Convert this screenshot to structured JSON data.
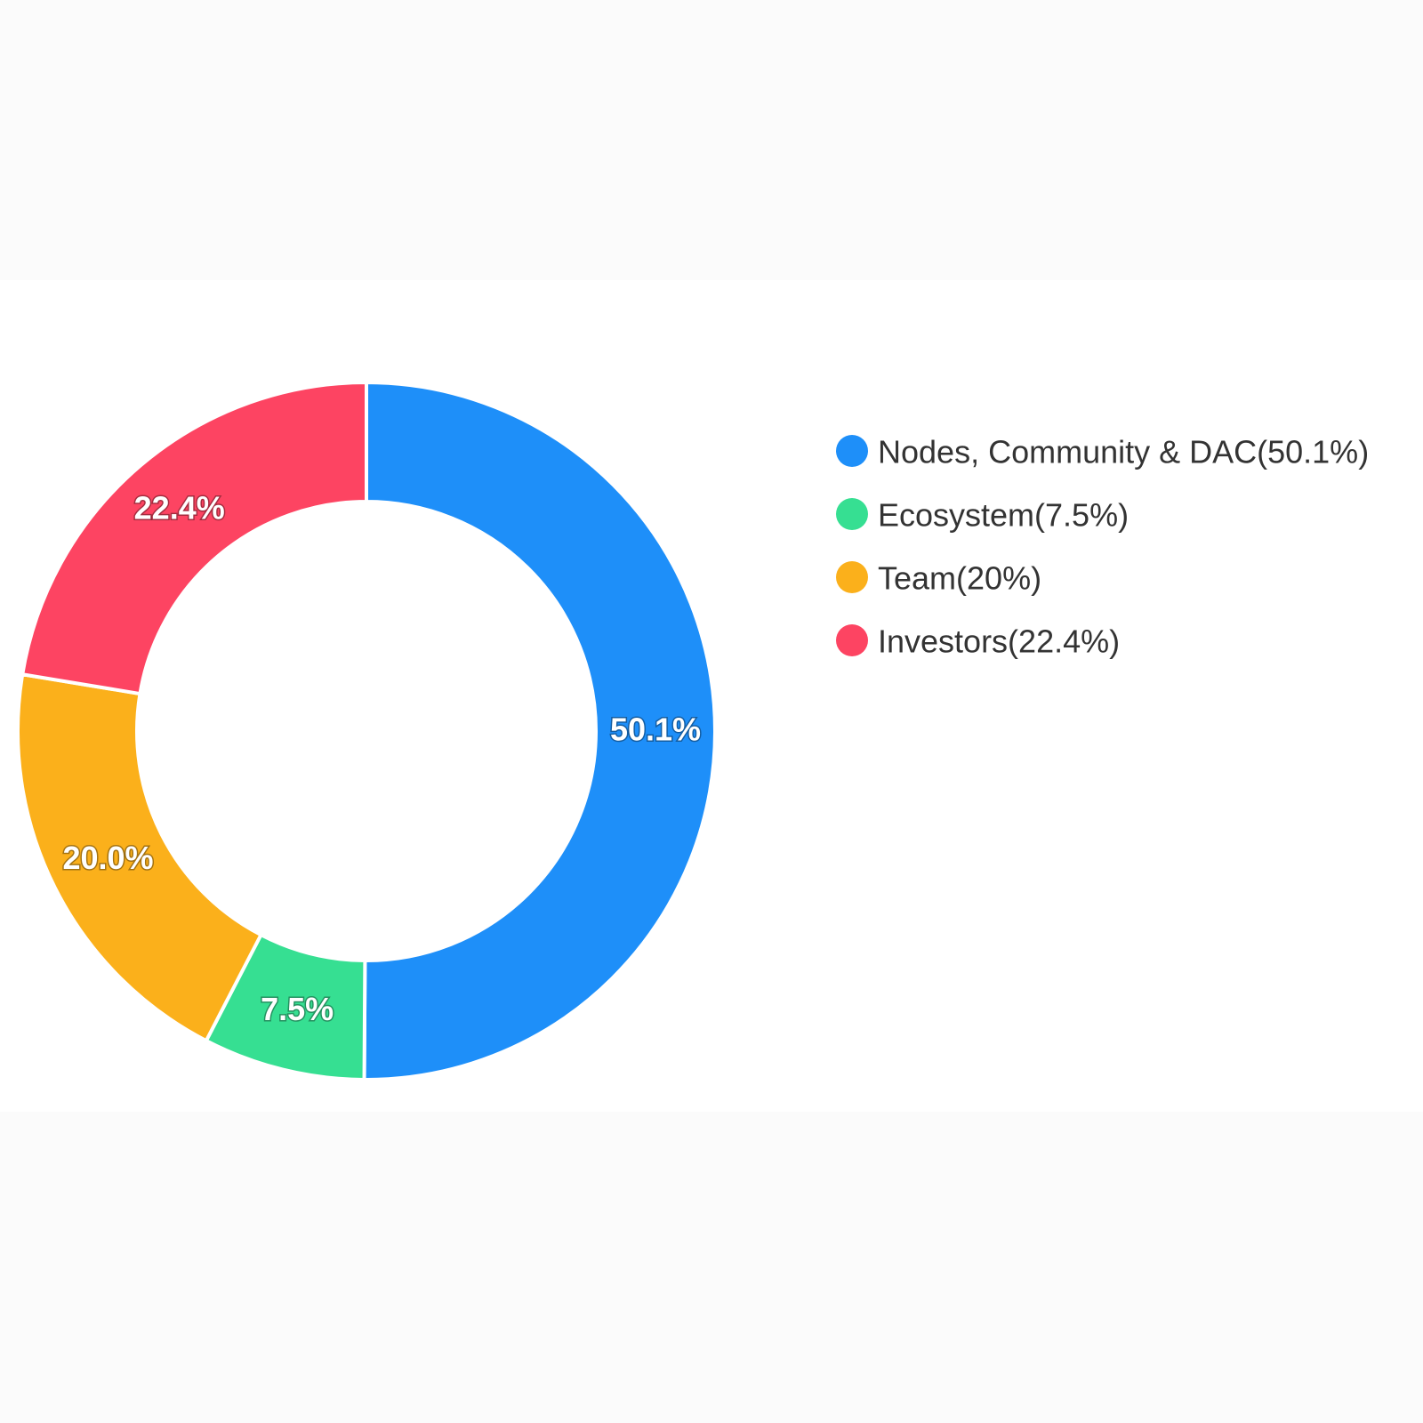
{
  "chart_data": {
    "type": "donut",
    "categories": [
      "Nodes, Community & DAC(50.1%)",
      "Ecosystem(7.5%)",
      "Team(20%)",
      "Investors(22.4%)"
    ],
    "values": [
      50.1,
      7.5,
      20,
      22.4
    ],
    "value_labels": [
      "50.1%",
      "7.5%",
      "20.0%",
      "22.4%"
    ],
    "colors": [
      "#1e8ff9",
      "#36df92",
      "#fbb01b",
      "#fd4462"
    ],
    "legend": "right"
  }
}
